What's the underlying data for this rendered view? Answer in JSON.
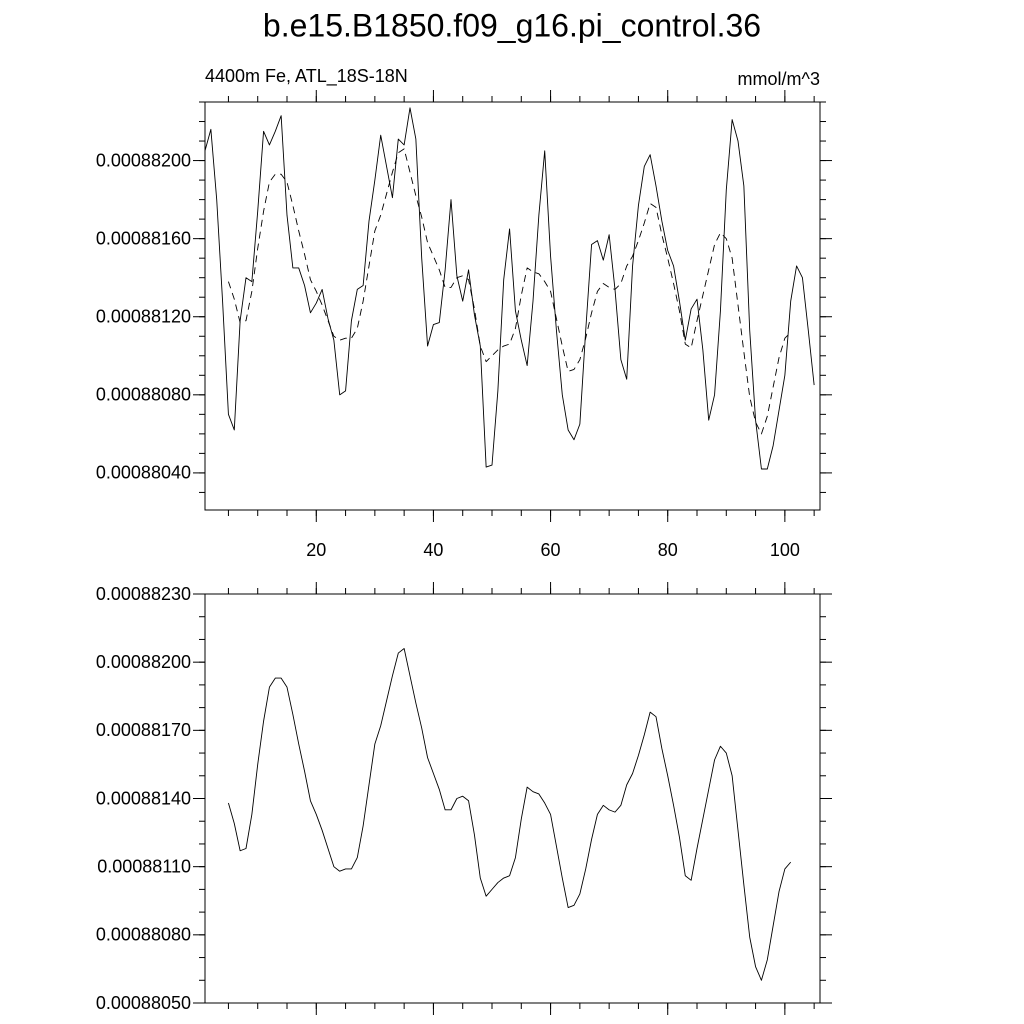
{
  "title": "b.e15.B1850.f09_g16.pi_control.36",
  "chart_data": [
    {
      "type": "line",
      "subtitle": "4400m Fe, ATL_18S-18N",
      "units": "mmol/m^3",
      "xlim": [
        1,
        106
      ],
      "xticks": [
        20,
        40,
        60,
        80,
        100
      ],
      "ylim": [
        0.00088021,
        0.0008823
      ],
      "yticks": [
        {
          "value": 0.0008804,
          "label": "0.00088040"
        },
        {
          "value": 0.0008808,
          "label": "0.00088080"
        },
        {
          "value": 0.0008812,
          "label": "0.00088120"
        },
        {
          "value": 0.0008816,
          "label": "0.00088160"
        },
        {
          "value": 0.000882,
          "label": "0.00088200"
        }
      ],
      "x": [
        1,
        2,
        3,
        4,
        5,
        6,
        7,
        8,
        9,
        10,
        11,
        12,
        13,
        14,
        15,
        16,
        17,
        18,
        19,
        20,
        21,
        22,
        23,
        24,
        25,
        26,
        27,
        28,
        29,
        30,
        31,
        32,
        33,
        34,
        35,
        36,
        37,
        38,
        39,
        40,
        41,
        42,
        43,
        44,
        45,
        46,
        47,
        48,
        49,
        50,
        51,
        52,
        53,
        54,
        55,
        56,
        57,
        58,
        59,
        60,
        61,
        62,
        63,
        64,
        65,
        66,
        67,
        68,
        69,
        70,
        71,
        72,
        73,
        74,
        75,
        76,
        77,
        78,
        79,
        80,
        81,
        82,
        83,
        84,
        85,
        86,
        87,
        88,
        89,
        90,
        91,
        92,
        93,
        94,
        95,
        96,
        97,
        98,
        99,
        100,
        101,
        102,
        103,
        104,
        105
      ],
      "series": [
        {
          "color": "#000000",
          "dash": "solid",
          "values": [
            0.00088205,
            0.00088216,
            0.0008818,
            0.00088128,
            0.0008807,
            0.00088062,
            0.00088118,
            0.0008814,
            0.00088138,
            0.00088174,
            0.00088215,
            0.00088208,
            0.00088215,
            0.00088223,
            0.00088172,
            0.00088145,
            0.00088145,
            0.00088136,
            0.00088122,
            0.00088127,
            0.00088134,
            0.00088119,
            0.00088108,
            0.0008808,
            0.00088082,
            0.00088118,
            0.00088134,
            0.00088136,
            0.00088169,
            0.0008819,
            0.00088213,
            0.00088197,
            0.00088181,
            0.00088211,
            0.00088208,
            0.00088227,
            0.00088211,
            0.0008815,
            0.00088105,
            0.00088116,
            0.00088117,
            0.00088144,
            0.0008818,
            0.00088141,
            0.00088128,
            0.00088144,
            0.00088121,
            0.00088105,
            0.00088043,
            0.00088044,
            0.00088082,
            0.00088139,
            0.00088165,
            0.00088123,
            0.00088108,
            0.00088095,
            0.00088128,
            0.00088172,
            0.00088205,
            0.00088151,
            0.00088113,
            0.0008808,
            0.00088062,
            0.00088057,
            0.00088065,
            0.00088113,
            0.00088157,
            0.00088159,
            0.00088149,
            0.00088162,
            0.00088134,
            0.00088098,
            0.00088088,
            0.00088146,
            0.00088177,
            0.00088197,
            0.00088203,
            0.00088187,
            0.00088169,
            0.00088154,
            0.00088146,
            0.00088128,
            0.00088108,
            0.00088124,
            0.00088129,
            0.00088103,
            0.00088067,
            0.0008808,
            0.00088123,
            0.00088185,
            0.00088221,
            0.0008821,
            0.00088187,
            0.00088113,
            0.00088067,
            0.00088042,
            0.00088042,
            0.00088054,
            0.00088072,
            0.0008809,
            0.00088128,
            0.00088146,
            0.0008814,
            0.00088113,
            0.00088085
          ]
        },
        {
          "color": "#000000",
          "dash": "dashed",
          "values": [
            null,
            null,
            null,
            null,
            0.00088138,
            0.00088129,
            0.00088117,
            0.00088118,
            0.00088133,
            0.00088155,
            0.00088174,
            0.00088189,
            0.00088193,
            0.00088193,
            0.00088189,
            0.00088177,
            0.00088164,
            0.00088152,
            0.00088139,
            0.00088133,
            0.00088126,
            0.00088118,
            0.0008811,
            0.00088108,
            0.00088109,
            0.00088109,
            0.00088114,
            0.00088128,
            0.00088146,
            0.00088164,
            0.00088172,
            0.00088183,
            0.00088194,
            0.00088204,
            0.00088206,
            0.00088194,
            0.00088182,
            0.00088171,
            0.00088158,
            0.00088151,
            0.00088144,
            0.00088135,
            0.00088135,
            0.0008814,
            0.00088141,
            0.00088139,
            0.00088124,
            0.00088105,
            0.00088097,
            0.000881,
            0.00088103,
            0.00088105,
            0.00088106,
            0.00088114,
            0.00088131,
            0.00088145,
            0.00088143,
            0.00088142,
            0.00088138,
            0.00088133,
            0.00088119,
            0.00088105,
            0.00088092,
            0.00088093,
            0.00088098,
            0.00088109,
            0.00088122,
            0.00088133,
            0.00088137,
            0.00088135,
            0.00088134,
            0.00088137,
            0.00088146,
            0.00088151,
            0.00088159,
            0.00088168,
            0.00088178,
            0.00088176,
            0.00088162,
            0.0008815,
            0.00088137,
            0.00088123,
            0.00088106,
            0.00088104,
            0.00088118,
            0.00088131,
            0.00088144,
            0.00088157,
            0.00088163,
            0.0008816,
            0.0008815,
            0.00088126,
            0.00088102,
            0.00088079,
            0.00088066,
            0.0008806,
            0.00088069,
            0.00088084,
            0.00088099,
            0.00088109,
            0.00088112,
            null,
            null,
            null,
            null
          ]
        }
      ]
    },
    {
      "type": "line",
      "xlim": [
        1,
        106
      ],
      "ylim": [
        0.0008805,
        0.0008823
      ],
      "yticks": [
        {
          "value": 0.0008805,
          "label": "0.00088050"
        },
        {
          "value": 0.0008808,
          "label": "0.00088080"
        },
        {
          "value": 0.0008811,
          "label": "0.00088110"
        },
        {
          "value": 0.0008814,
          "label": "0.00088140"
        },
        {
          "value": 0.0008817,
          "label": "0.00088170"
        },
        {
          "value": 0.000882,
          "label": "0.00088200"
        },
        {
          "value": 0.0008823,
          "label": "0.00088230"
        }
      ],
      "x": [
        5,
        6,
        7,
        8,
        9,
        10,
        11,
        12,
        13,
        14,
        15,
        16,
        17,
        18,
        19,
        20,
        21,
        22,
        23,
        24,
        25,
        26,
        27,
        28,
        29,
        30,
        31,
        32,
        33,
        34,
        35,
        36,
        37,
        38,
        39,
        40,
        41,
        42,
        43,
        44,
        45,
        46,
        47,
        48,
        49,
        50,
        51,
        52,
        53,
        54,
        55,
        56,
        57,
        58,
        59,
        60,
        61,
        62,
        63,
        64,
        65,
        66,
        67,
        68,
        69,
        70,
        71,
        72,
        73,
        74,
        75,
        76,
        77,
        78,
        79,
        80,
        81,
        82,
        83,
        84,
        85,
        86,
        87,
        88,
        89,
        90,
        91,
        92,
        93,
        94,
        95,
        96,
        97,
        98,
        99,
        100,
        101
      ],
      "series": [
        {
          "color": "#000000",
          "dash": "solid",
          "values": [
            0.00088138,
            0.00088129,
            0.00088117,
            0.00088118,
            0.00088133,
            0.00088155,
            0.00088174,
            0.00088189,
            0.00088193,
            0.00088193,
            0.00088189,
            0.00088177,
            0.00088164,
            0.00088152,
            0.00088139,
            0.00088133,
            0.00088126,
            0.00088118,
            0.0008811,
            0.00088108,
            0.00088109,
            0.00088109,
            0.00088114,
            0.00088128,
            0.00088146,
            0.00088164,
            0.00088172,
            0.00088183,
            0.00088194,
            0.00088204,
            0.00088206,
            0.00088194,
            0.00088182,
            0.00088171,
            0.00088158,
            0.00088151,
            0.00088144,
            0.00088135,
            0.00088135,
            0.0008814,
            0.00088141,
            0.00088139,
            0.00088124,
            0.00088105,
            0.00088097,
            0.000881,
            0.00088103,
            0.00088105,
            0.00088106,
            0.00088114,
            0.00088131,
            0.00088145,
            0.00088143,
            0.00088142,
            0.00088138,
            0.00088133,
            0.00088119,
            0.00088105,
            0.00088092,
            0.00088093,
            0.00088098,
            0.00088109,
            0.00088122,
            0.00088133,
            0.00088137,
            0.00088135,
            0.00088134,
            0.00088137,
            0.00088146,
            0.00088151,
            0.00088159,
            0.00088168,
            0.00088178,
            0.00088176,
            0.00088162,
            0.0008815,
            0.00088137,
            0.00088123,
            0.00088106,
            0.00088104,
            0.00088118,
            0.00088131,
            0.00088144,
            0.00088157,
            0.00088163,
            0.0008816,
            0.0008815,
            0.00088126,
            0.00088102,
            0.00088079,
            0.00088066,
            0.0008806,
            0.00088069,
            0.00088084,
            0.00088099,
            0.00088109,
            0.00088112
          ]
        }
      ]
    }
  ]
}
